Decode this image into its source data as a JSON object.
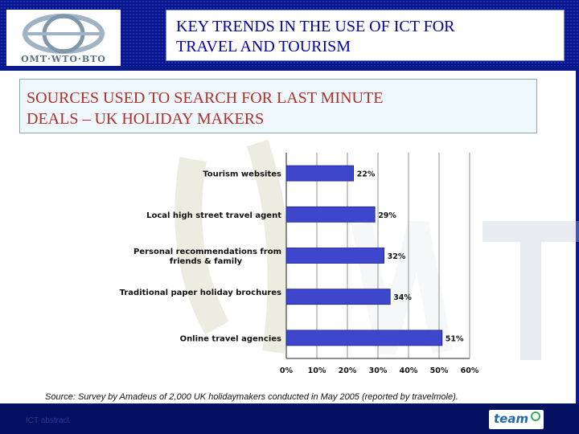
{
  "header": {
    "title_line1": "KEY TRENDS IN THE USE OF ICT FOR",
    "title_line2": "TRAVEL AND TOURISM",
    "logo_text": "OMT·WTO·BTO"
  },
  "slide": {
    "subtitle_line1": "SOURCES USED TO SEARCH FOR LAST MINUTE",
    "subtitle_line2": "DEALS – UK HOLIDAY MAKERS",
    "source": "Source: Survey by Amadeus of 2,000 UK holidaymakers conducted in May 2005 (reported by travelmole)."
  },
  "footer": {
    "label": "ICT abstract",
    "team_logo": "team"
  },
  "colors": {
    "bar": "#3d46cc",
    "header_bg": "#07168e",
    "title_text": "#0000a8",
    "subtitle_text": "#b0302a"
  },
  "chart_data": {
    "type": "bar",
    "orientation": "horizontal",
    "categories": [
      "Tourism websites",
      "Local high street travel agent",
      "Personal recommendations from friends & family",
      "Traditional paper holiday brochures",
      "Online travel agencies"
    ],
    "values": [
      22,
      29,
      32,
      34,
      51
    ],
    "value_labels": [
      "22%",
      "29%",
      "32%",
      "34%",
      "51%"
    ],
    "xlim": [
      0,
      60
    ],
    "xticks": [
      "0%",
      "10%",
      "20%",
      "30%",
      "40%",
      "50%",
      "60%"
    ],
    "grid": true
  }
}
